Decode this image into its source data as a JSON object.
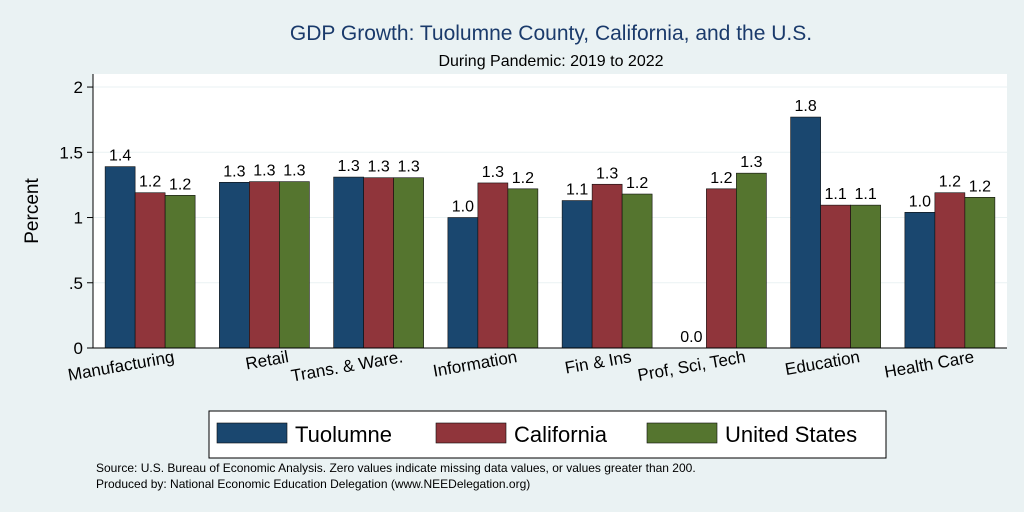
{
  "chart_data": {
    "type": "bar",
    "title": "GDP Growth: Tuolumne County, California, and the U.S.",
    "subtitle": "During Pandemic: 2019 to 2022",
    "ylabel": "Percent",
    "ylim": [
      0,
      2.1
    ],
    "yticks": [
      {
        "value": 0,
        "label": "0"
      },
      {
        "value": 0.5,
        "label": ".5"
      },
      {
        "value": 1,
        "label": "1"
      },
      {
        "value": 1.5,
        "label": "1.5"
      },
      {
        "value": 2,
        "label": "2"
      }
    ],
    "categories": [
      "Manufacturing",
      "Retail",
      "Trans. & Ware.",
      "Information",
      "Fin & Ins",
      "Prof, Sci, Tech",
      "Education",
      "Health Care"
    ],
    "series": [
      {
        "name": "Tuolumne",
        "color": "#1a476f",
        "values": [
          1.39,
          1.27,
          1.31,
          1.0,
          1.13,
          0.0,
          1.77,
          1.04
        ],
        "labels": [
          "1.4",
          "1.3",
          "1.3",
          "1.0",
          "1.1",
          "0.0",
          "1.8",
          "1.0"
        ]
      },
      {
        "name": "California",
        "color": "#90353b",
        "values": [
          1.19,
          1.275,
          1.305,
          1.265,
          1.255,
          1.22,
          1.095,
          1.19
        ],
        "labels": [
          "1.2",
          "1.3",
          "1.3",
          "1.3",
          "1.3",
          "1.2",
          "1.1",
          "1.2"
        ]
      },
      {
        "name": "United States",
        "color": "#55752f",
        "values": [
          1.17,
          1.275,
          1.305,
          1.22,
          1.18,
          1.34,
          1.095,
          1.155
        ],
        "labels": [
          "1.2",
          "1.3",
          "1.3",
          "1.2",
          "1.2",
          "1.3",
          "1.1",
          "1.2"
        ]
      }
    ],
    "legend_position": "bottom",
    "grid": true
  },
  "notes": {
    "source": "Source: U.S. Bureau of Economic Analysis. Zero values indicate missing data values, or values greater than 200.",
    "produced": "Produced by: National Economic Education Delegation (www.NEEDelegation.org)"
  }
}
